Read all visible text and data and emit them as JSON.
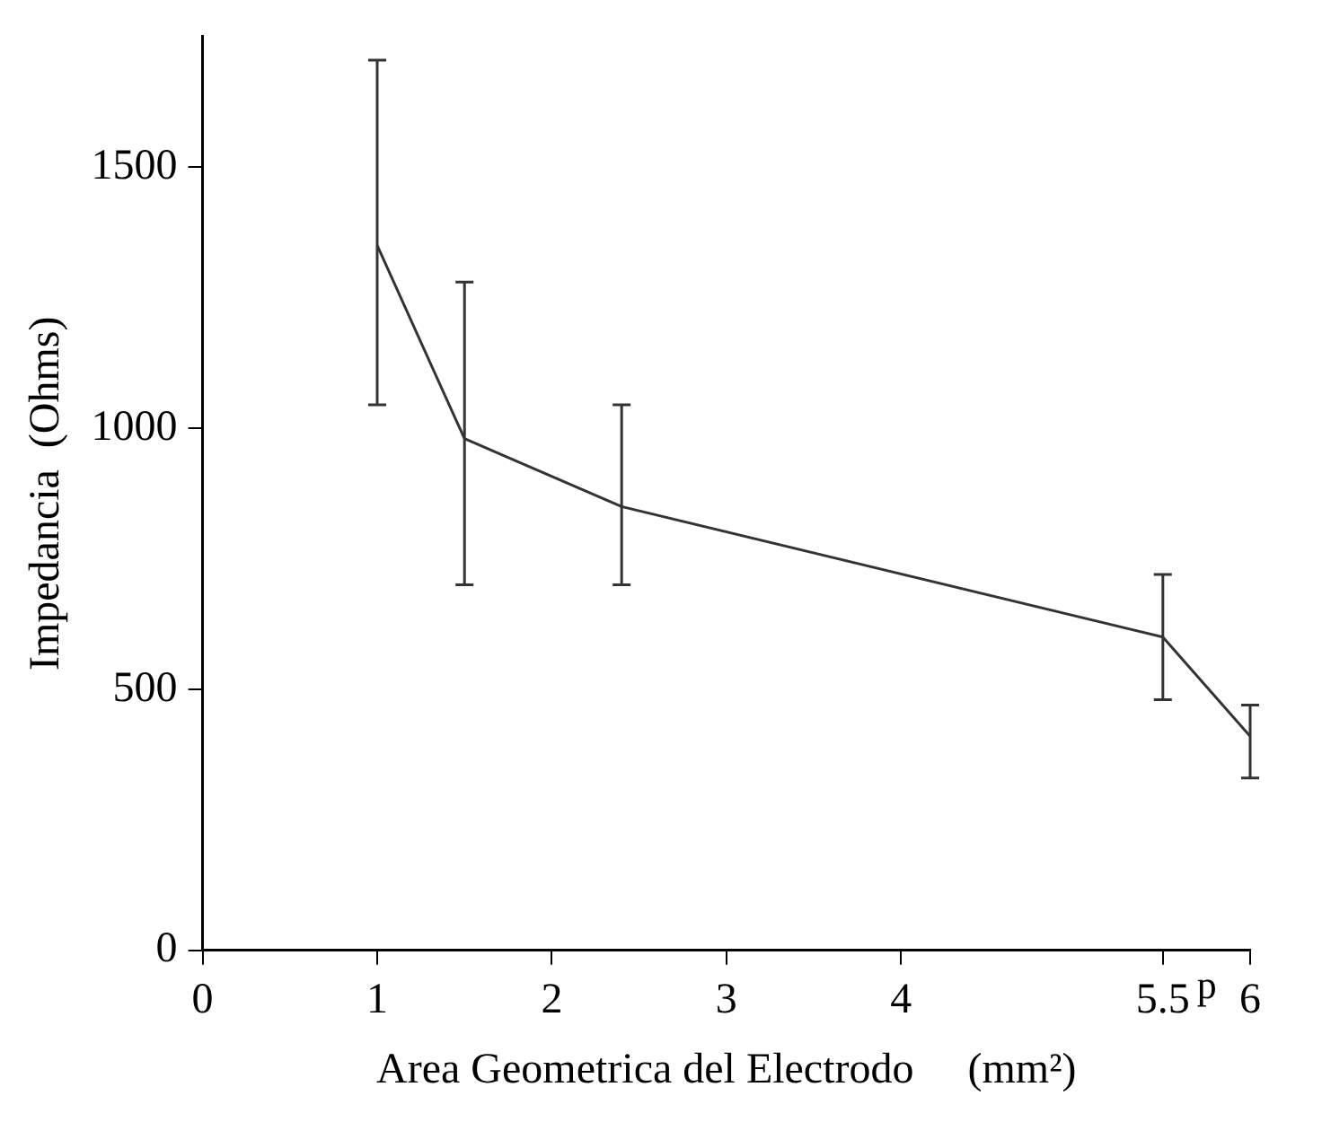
{
  "chart_data": {
    "type": "line",
    "xlabel": "Area Geometrica del Electrodo     (mm²)",
    "ylabel": "Impedancia  (Ohms)",
    "x": [
      1,
      1.5,
      2.4,
      5.5,
      6
    ],
    "series": [
      {
        "color": "#333333",
        "values": [
          1350,
          980,
          850,
          600,
          410
        ],
        "errors": [
          [
            1045,
            1705
          ],
          [
            700,
            1280
          ],
          [
            700,
            1045
          ],
          [
            480,
            720
          ],
          [
            330,
            470
          ]
        ]
      }
    ],
    "xlim": [
      0,
      6
    ],
    "xticks": [
      0,
      1,
      2,
      3,
      4,
      5.5,
      6
    ],
    "ylim": [
      0,
      1750
    ],
    "yticks": [
      0,
      500,
      1000,
      1500
    ],
    "annotations": [
      "p"
    ],
    "grid": false,
    "legend": false,
    "marker": "none",
    "line_style": "solid"
  }
}
